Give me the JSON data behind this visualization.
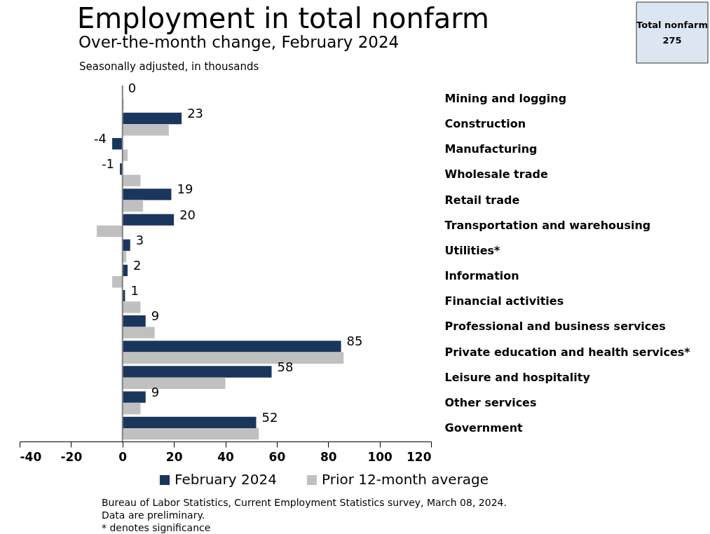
{
  "chart_data": {
    "type": "bar",
    "orientation": "horizontal",
    "title": "Employment in total nonfarm",
    "subtitle": "Over-the-month change, February 2024",
    "categories": [
      "Mining and logging",
      "Construction",
      "Manufacturing",
      "Wholesale trade",
      "Retail trade",
      "Transportation and warehousing",
      "Utilities*",
      "Information",
      "Financial activities",
      "Professional and business services",
      "Private education and health services*",
      "Leisure and hospitality",
      "Other services",
      "Government"
    ],
    "series": [
      {
        "name": "February 2024",
        "color": "#1b365d",
        "values": [
          0,
          23,
          -4,
          -1,
          19,
          20,
          3,
          2,
          1,
          9,
          85,
          58,
          9,
          52
        ],
        "value_labels": [
          "0",
          "23",
          "-4",
          "-1",
          "19",
          "20",
          "3",
          "2",
          "1",
          "9",
          "85",
          "58",
          "9",
          "52"
        ]
      },
      {
        "name": "Prior 12-month average",
        "color": "#c0c0c0",
        "values": [
          0.5,
          18,
          2,
          7,
          8,
          -10,
          1.5,
          -4,
          7,
          12.5,
          86,
          40,
          7,
          53
        ]
      }
    ],
    "xlim": [
      -40,
      120
    ],
    "xticks": [
      -40,
      -20,
      0,
      20,
      40,
      60,
      80,
      100,
      120
    ],
    "grid": false,
    "legend": "bottom",
    "ref_lines": [
      {
        "axis": "x",
        "value": 0,
        "color": "#808080",
        "line_style": "solid"
      }
    ],
    "annotations": [
      "Seasonally adjusted, in thousands",
      "Total nonfarm",
      "275",
      "Bureau of Labor Statistics, Current Employment Statistics survey, March 08, 2024.",
      "Data are preliminary.",
      "* denotes significance"
    ]
  }
}
